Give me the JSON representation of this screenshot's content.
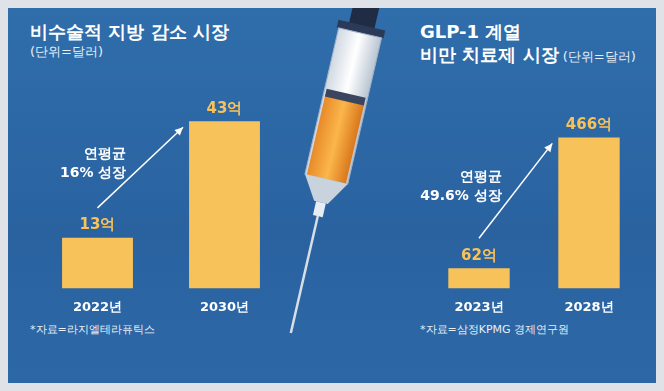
{
  "chart_data": [
    {
      "type": "bar",
      "title": [
        "비수술적 지방 감소 시장"
      ],
      "subtitle": "(단위=달러)",
      "categories": [
        "2022년",
        "2030년"
      ],
      "values": [
        13,
        43
      ],
      "value_labels": [
        "13억",
        "43억"
      ],
      "color": "#f8c25b",
      "annotation": [
        "연평균",
        "16% 성장"
      ],
      "source": "*자료=라지엘테라퓨틱스",
      "data_labels": true,
      "tick_labels": "x",
      "grid": false
    },
    {
      "type": "bar",
      "title": [
        "GLP-1 계열",
        "비만 치료제 시장"
      ],
      "subtitle": "(단위=달러)",
      "categories": [
        "2023년",
        "2028년"
      ],
      "values": [
        62,
        466
      ],
      "value_labels": [
        "62억",
        "466억"
      ],
      "color": "#f8c25b",
      "annotation": [
        "연평균",
        "49.6% 성장"
      ],
      "source": "*자료=삼정KPMG 경제연구원",
      "data_labels": true,
      "tick_labels": "x",
      "grid": false
    }
  ]
}
